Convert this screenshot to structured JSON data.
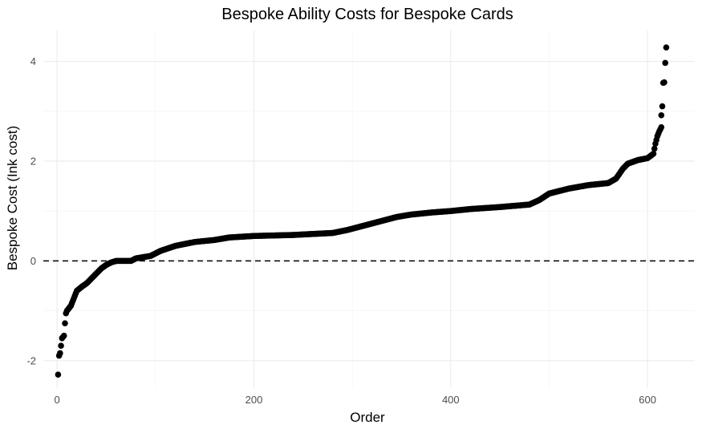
{
  "chart_data": {
    "type": "scatter",
    "title": "Bespoke Ability Costs for Bespoke Cards",
    "xlabel": "Order",
    "ylabel": "Bespoke Cost (Ink cost)",
    "xlim": [
      -14,
      648
    ],
    "ylim": [
      -2.55,
      4.62
    ],
    "x_ticks": [
      0,
      200,
      400,
      600
    ],
    "x_tick_labels": [
      "0",
      "200",
      "400",
      "600"
    ],
    "y_ticks": [
      -2,
      0,
      2,
      4
    ],
    "y_tick_labels": [
      "-2",
      "0",
      "2",
      "4"
    ],
    "grid": true,
    "reference_line": {
      "y": 0,
      "style": "dashed"
    },
    "n_points": 620,
    "curve_knots": [
      [
        1,
        -2.28
      ],
      [
        2,
        -1.9
      ],
      [
        3,
        -1.85
      ],
      [
        5,
        -1.55
      ],
      [
        7,
        -1.5
      ],
      [
        8,
        -1.25
      ],
      [
        9,
        -1.05
      ],
      [
        10,
        -1.0
      ],
      [
        12,
        -0.95
      ],
      [
        14,
        -0.9
      ],
      [
        16,
        -0.8
      ],
      [
        18,
        -0.7
      ],
      [
        20,
        -0.6
      ],
      [
        25,
        -0.52
      ],
      [
        30,
        -0.45
      ],
      [
        35,
        -0.35
      ],
      [
        40,
        -0.25
      ],
      [
        45,
        -0.15
      ],
      [
        50,
        -0.08
      ],
      [
        55,
        -0.03
      ],
      [
        60,
        0.0
      ],
      [
        75,
        0.0
      ],
      [
        80,
        0.05
      ],
      [
        95,
        0.1
      ],
      [
        105,
        0.2
      ],
      [
        120,
        0.3
      ],
      [
        140,
        0.38
      ],
      [
        160,
        0.42
      ],
      [
        175,
        0.47
      ],
      [
        200,
        0.5
      ],
      [
        240,
        0.52
      ],
      [
        280,
        0.56
      ],
      [
        295,
        0.62
      ],
      [
        320,
        0.75
      ],
      [
        345,
        0.88
      ],
      [
        360,
        0.93
      ],
      [
        380,
        0.97
      ],
      [
        400,
        1.0
      ],
      [
        420,
        1.04
      ],
      [
        450,
        1.08
      ],
      [
        480,
        1.13
      ],
      [
        490,
        1.22
      ],
      [
        500,
        1.35
      ],
      [
        520,
        1.45
      ],
      [
        540,
        1.52
      ],
      [
        560,
        1.56
      ],
      [
        568,
        1.65
      ],
      [
        575,
        1.85
      ],
      [
        580,
        1.95
      ],
      [
        590,
        2.02
      ],
      [
        600,
        2.06
      ],
      [
        606,
        2.15
      ],
      [
        608,
        2.35
      ],
      [
        610,
        2.5
      ],
      [
        612,
        2.6
      ],
      [
        614,
        2.68
      ]
    ],
    "outliers": [
      [
        614,
        2.92
      ],
      [
        615,
        3.1
      ],
      [
        616,
        3.57
      ],
      [
        617,
        3.58
      ],
      [
        618,
        3.97
      ],
      [
        619,
        4.28
      ]
    ]
  }
}
